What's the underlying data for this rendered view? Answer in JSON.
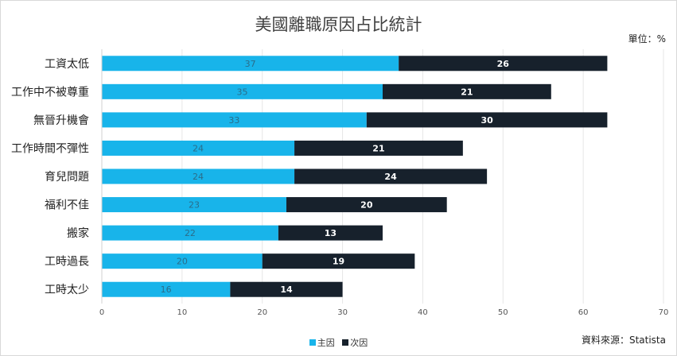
{
  "colors": {
    "primary": "#18b4ea",
    "secondary": "#17212c",
    "grid": "#e6e6e6"
  },
  "unit_label": "單位：%",
  "source_label": "資料來源：Statista",
  "chart_data": {
    "type": "bar",
    "orientation": "horizontal",
    "stacked": true,
    "title": "美國離職原因占比統計",
    "categories": [
      "工資太低",
      "工作中不被尊重",
      "無晉升機會",
      "工作時間不彈性",
      "育兒問題",
      "福利不佳",
      "搬家",
      "工時過長",
      "工時太少"
    ],
    "series": [
      {
        "name": "主因",
        "values": [
          37,
          35,
          33,
          24,
          24,
          23,
          22,
          20,
          16
        ]
      },
      {
        "name": "次因",
        "values": [
          26,
          21,
          30,
          21,
          24,
          20,
          13,
          19,
          14
        ]
      }
    ],
    "xlim": [
      0,
      70
    ],
    "xticks": [
      0,
      10,
      20,
      30,
      40,
      50,
      60,
      70
    ],
    "grid": true,
    "legend_position": "bottom"
  }
}
